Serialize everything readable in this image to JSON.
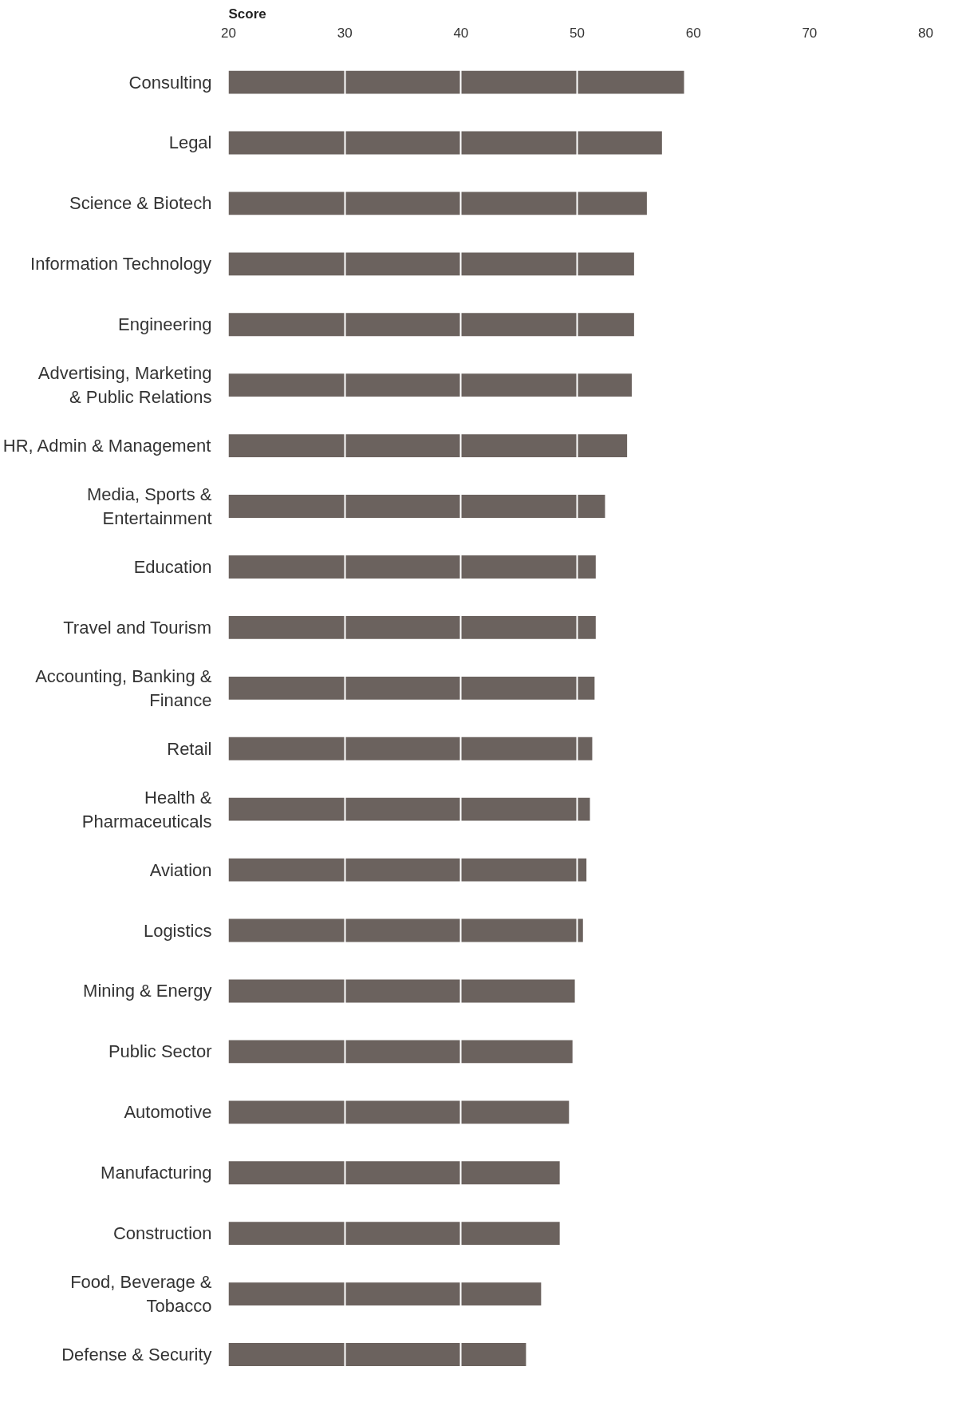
{
  "chart_data": {
    "type": "bar",
    "orientation": "horizontal",
    "title": "Score",
    "categories": [
      "Consulting",
      "Legal",
      "Science & Biotech",
      "Information Technology",
      "Engineering",
      "Advertising, Marketing & Public Relations",
      "HR, Admin & Management",
      "Media, Sports & Entertainment",
      "Education",
      "Travel and Tourism",
      "Accounting, Banking & Finance",
      "Retail",
      "Health & Pharmaceuticals",
      "Aviation",
      "Logistics",
      "Mining & Energy",
      "Public Sector",
      "Automotive",
      "Manufacturing",
      "Construction",
      "Food, Beverage & Tobacco",
      "Defense & Security"
    ],
    "values": [
      59.2,
      57.3,
      56.0,
      54.9,
      54.9,
      54.7,
      54.3,
      52.4,
      51.6,
      51.6,
      51.5,
      51.3,
      51.1,
      50.8,
      50.5,
      49.8,
      49.6,
      49.3,
      48.5,
      48.5,
      46.9,
      45.6
    ],
    "color": "#6b625e",
    "xlim": [
      20,
      80
    ],
    "xticks": [
      20,
      30,
      40,
      50,
      60,
      70,
      80
    ],
    "grid": "x"
  }
}
